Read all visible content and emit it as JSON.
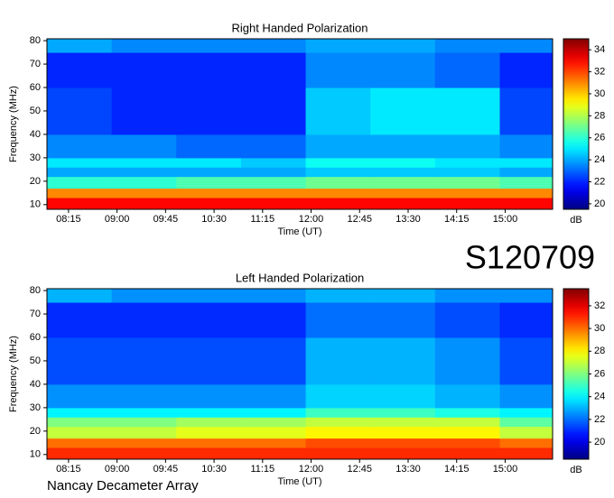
{
  "chart_data": [
    {
      "type": "heatmap",
      "title": "Right Handed Polarization",
      "x_label": "Time (UT)",
      "y_label": "Frequency (MHz)",
      "colorbar_label": "dB",
      "colormap": "jet",
      "xlim": [
        475,
        944
      ],
      "ylim": [
        8,
        80.8
      ],
      "xticks": [
        {
          "value": 495,
          "label": "08:15"
        },
        {
          "value": 540,
          "label": "09:00"
        },
        {
          "value": 585,
          "label": "09:45"
        },
        {
          "value": 630,
          "label": "10:30"
        },
        {
          "value": 675,
          "label": "11:15"
        },
        {
          "value": 720,
          "label": "12:00"
        },
        {
          "value": 765,
          "label": "12:45"
        },
        {
          "value": 810,
          "label": "13:30"
        },
        {
          "value": 855,
          "label": "14:15"
        },
        {
          "value": 900,
          "label": "15:00"
        }
      ],
      "yticks": [
        10,
        20,
        30,
        40,
        50,
        60,
        70,
        80
      ],
      "clim": [
        19.5,
        35
      ],
      "cticks": [
        20,
        22,
        24,
        26,
        28,
        30,
        32,
        34
      ],
      "x_bins": [
        475,
        535,
        595,
        655,
        715,
        775,
        835,
        895,
        944
      ],
      "y_bins": [
        8,
        13,
        17,
        22,
        26,
        30,
        40,
        60,
        75,
        80.8
      ],
      "z": [
        [
          33,
          33,
          33,
          33,
          33,
          33,
          33,
          33
        ],
        [
          31,
          31,
          31,
          31,
          31,
          31,
          31,
          31
        ],
        [
          26,
          26,
          26.5,
          26.5,
          27,
          27,
          27,
          26.5
        ],
        [
          24,
          24,
          24,
          24,
          24.5,
          24.5,
          24.5,
          24
        ],
        [
          25,
          25,
          25,
          24.5,
          25.5,
          25.5,
          25,
          25
        ],
        [
          23.5,
          23.5,
          23,
          23,
          24,
          24,
          24,
          23.5
        ],
        [
          22.5,
          22,
          22,
          22,
          24.5,
          25,
          25,
          22.5
        ],
        [
          22,
          22,
          22,
          22,
          23.5,
          23.5,
          23,
          22
        ],
        [
          24,
          23.5,
          23.5,
          23.5,
          24,
          24,
          23.5,
          23.5
        ]
      ]
    },
    {
      "type": "heatmap",
      "title": "Left Handed Polarization",
      "x_label": "Time (UT)",
      "y_label": "Frequency (MHz)",
      "colorbar_label": "dB",
      "colormap": "jet",
      "xlim": [
        475,
        944
      ],
      "ylim": [
        8,
        80.8
      ],
      "xticks": [
        {
          "value": 495,
          "label": "08:15"
        },
        {
          "value": 540,
          "label": "09:00"
        },
        {
          "value": 585,
          "label": "09:45"
        },
        {
          "value": 630,
          "label": "10:30"
        },
        {
          "value": 675,
          "label": "11:15"
        },
        {
          "value": 720,
          "label": "12:00"
        },
        {
          "value": 765,
          "label": "12:45"
        },
        {
          "value": 810,
          "label": "13:30"
        },
        {
          "value": 855,
          "label": "14:15"
        },
        {
          "value": 900,
          "label": "15:00"
        }
      ],
      "yticks": [
        10,
        20,
        30,
        40,
        50,
        60,
        70,
        80
      ],
      "clim": [
        18.5,
        33.5
      ],
      "cticks": [
        20,
        22,
        24,
        26,
        28,
        30,
        32
      ],
      "x_bins": [
        475,
        535,
        595,
        655,
        715,
        775,
        835,
        895,
        944
      ],
      "y_bins": [
        8,
        13,
        17,
        22,
        26,
        30,
        40,
        60,
        75,
        80.8
      ],
      "z": [
        [
          31,
          31,
          31,
          31,
          31,
          31,
          31,
          31
        ],
        [
          30,
          30,
          30,
          30,
          30.5,
          30.5,
          30.5,
          30
        ],
        [
          27,
          27,
          27.5,
          27.5,
          28,
          28,
          28,
          27
        ],
        [
          26,
          26,
          26.5,
          26.5,
          27,
          27,
          27,
          25.5
        ],
        [
          24,
          24,
          24,
          24,
          25,
          25,
          24.5,
          24
        ],
        [
          22.5,
          22.5,
          22.5,
          22.5,
          23.5,
          23.5,
          23,
          22.5
        ],
        [
          21.5,
          21.5,
          21.5,
          21.5,
          23,
          23,
          22.5,
          21.5
        ],
        [
          21,
          21,
          21,
          21,
          22,
          22,
          21.5,
          21
        ],
        [
          23,
          22.5,
          22.5,
          22.5,
          23,
          23,
          22.5,
          22.5
        ]
      ]
    }
  ],
  "label": "S120709",
  "footer": "Nancay Decameter Array"
}
